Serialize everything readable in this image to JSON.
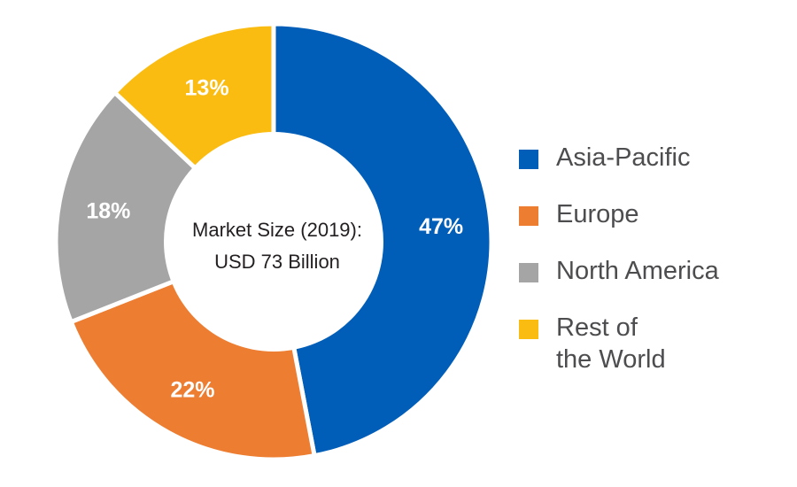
{
  "chart_data": {
    "type": "pie",
    "variant": "donut",
    "center_text": [
      "Market Size (2019):",
      "USD 73 Billion"
    ],
    "start_angle_deg": 0,
    "direction": "clockwise",
    "slices": [
      {
        "label": "Asia-Pacific",
        "legend": "Asia-Pacific",
        "value": 47,
        "display": "47%",
        "color": "#005eb8"
      },
      {
        "label": "Europe",
        "legend": "Europe",
        "value": 22,
        "display": "22%",
        "color": "#ed7d31"
      },
      {
        "label": "North America",
        "legend": "North America",
        "value": 18,
        "display": "18%",
        "color": "#a5a5a5"
      },
      {
        "label": "Rest of the World",
        "legend": "Rest of\nthe World",
        "value": 13,
        "display": "13%",
        "color": "#fbbc11"
      }
    ],
    "legend_position": "right"
  }
}
